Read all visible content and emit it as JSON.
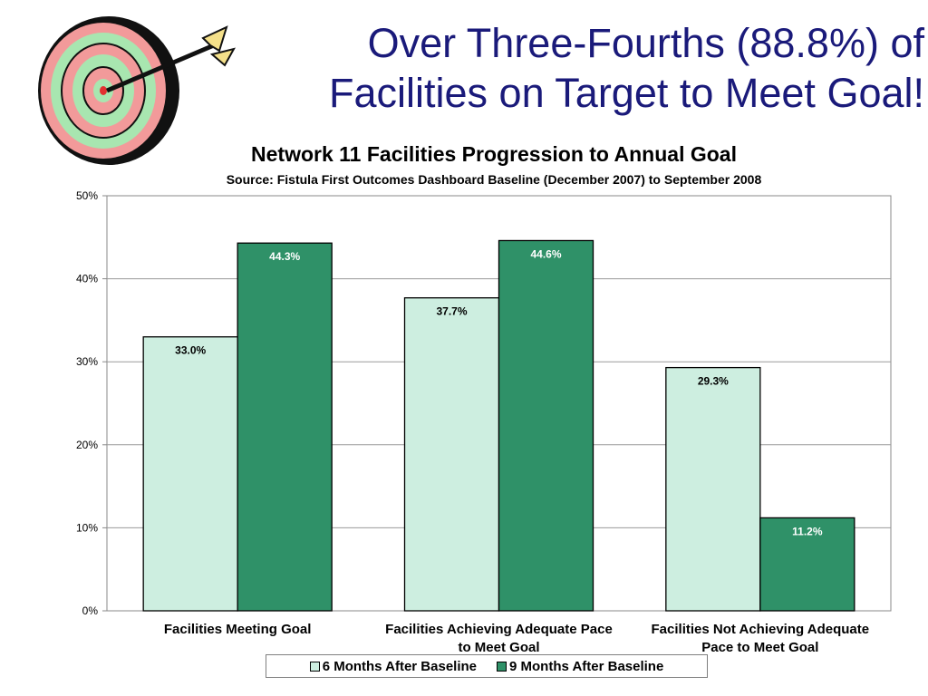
{
  "slide": {
    "title_line_1": "Over Three-Fourths (88.8%) of",
    "title_line_2": "Facilities on Target to Meet Goal!"
  },
  "colors": {
    "title": "#1a1a7a",
    "series_1": "#cdeee0",
    "series_2": "#2f9168"
  },
  "chart_data": {
    "type": "bar",
    "title": "Network 11 Facilities Progression to Annual Goal",
    "subtitle": "Source:  Fistula First Outcomes Dashboard Baseline (December 2007) to September 2008",
    "categories": [
      [
        "Facilities Meeting Goal"
      ],
      [
        "Facilities Achieving Adequate Pace",
        "to Meet Goal"
      ],
      [
        "Facilities Not Achieving Adequate",
        "Pace to Meet Goal"
      ]
    ],
    "series": [
      {
        "name": "6 Months After Baseline",
        "values": [
          33.0,
          37.7,
          29.3
        ],
        "labels": [
          "33.0%",
          "37.7%",
          "29.3%"
        ]
      },
      {
        "name": "9 Months After Baseline",
        "values": [
          44.3,
          44.6,
          11.2
        ],
        "labels": [
          "44.3%",
          "44.6%",
          "11.2%"
        ]
      }
    ],
    "ylim": [
      0,
      50
    ],
    "yticks": [
      "0%",
      "10%",
      "20%",
      "30%",
      "40%",
      "50%"
    ],
    "grid": true,
    "legend_position": "bottom"
  }
}
